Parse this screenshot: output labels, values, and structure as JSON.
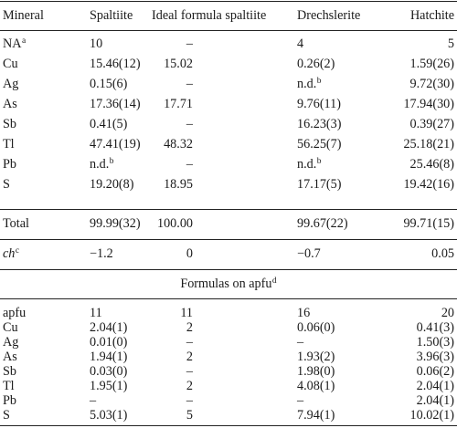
{
  "header": {
    "col0": "Mineral",
    "col1": "Spaltiite",
    "col2": "Ideal formula spaltiite",
    "col3": "Drechslerite",
    "col4": "Hatchite"
  },
  "composition_rows": [
    {
      "label": "NA",
      "sup": "a",
      "v1": "10",
      "v2": "–",
      "v3": "4",
      "v3sup": "",
      "v4": "5",
      "v1sup": ""
    },
    {
      "label": "Cu",
      "sup": "",
      "v1": "15.46(12)",
      "v2": "15.02",
      "v3": "0.26(2)",
      "v3sup": "",
      "v4": "1.59(26)",
      "v1sup": ""
    },
    {
      "label": "Ag",
      "sup": "",
      "v1": "0.15(6)",
      "v2": "–",
      "v3": "n.d.",
      "v3sup": "b",
      "v4": "9.72(30)",
      "v1sup": ""
    },
    {
      "label": "As",
      "sup": "",
      "v1": "17.36(14)",
      "v2": "17.71",
      "v3": "9.76(11)",
      "v3sup": "",
      "v4": "17.94(30)",
      "v1sup": ""
    },
    {
      "label": "Sb",
      "sup": "",
      "v1": "0.41(5)",
      "v2": "–",
      "v3": "16.23(3)",
      "v3sup": "",
      "v4": "0.39(27)",
      "v1sup": ""
    },
    {
      "label": "Tl",
      "sup": "",
      "v1": "47.41(19)",
      "v2": "48.32",
      "v3": "56.25(7)",
      "v3sup": "",
      "v4": "25.18(21)",
      "v1sup": ""
    },
    {
      "label": "Pb",
      "sup": "",
      "v1": "n.d.",
      "v2": "–",
      "v3": "n.d.",
      "v3sup": "b",
      "v4": "25.46(8)",
      "v1sup": "b"
    },
    {
      "label": "S",
      "sup": "",
      "v1": "19.20(8)",
      "v2": "18.95",
      "v3": "17.17(5)",
      "v3sup": "",
      "v4": "19.42(16)",
      "v1sup": ""
    }
  ],
  "total_row": {
    "label": "Total",
    "v1": "99.99(32)",
    "v2": "100.00",
    "v3": "99.67(22)",
    "v4": "99.71(15)"
  },
  "ch_row": {
    "label": "ch",
    "sup": "c",
    "v1": "−1.2",
    "v2": "0",
    "v3": "−0.7",
    "v4": "0.05"
  },
  "formulas_title": {
    "text": "Formulas on apfu",
    "sup": "d"
  },
  "apfu_rows": [
    {
      "label": "apfu",
      "v1": "11",
      "v2": "11",
      "v3": "16",
      "v4": "20"
    },
    {
      "label": "Cu",
      "v1": "2.04(1)",
      "v2": "2",
      "v3": "0.06(0)",
      "v4": "0.41(3)"
    },
    {
      "label": "Ag",
      "v1": "0.01(0)",
      "v2": "–",
      "v3": "–",
      "v4": "1.50(3)"
    },
    {
      "label": "As",
      "v1": "1.94(1)",
      "v2": "2",
      "v3": "1.93(2)",
      "v4": "3.96(3)"
    },
    {
      "label": "Sb",
      "v1": "0.03(0)",
      "v2": "–",
      "v3": "1.98(0)",
      "v4": "0.06(2)"
    },
    {
      "label": "Tl",
      "v1": "1.95(1)",
      "v2": "2",
      "v3": "4.08(1)",
      "v4": "2.04(1)"
    },
    {
      "label": "Pb",
      "v1": "–",
      "v2": "–",
      "v3": "–",
      "v4": "2.04(1)"
    },
    {
      "label": "S",
      "v1": "5.03(1)",
      "v2": "5",
      "v3": "7.94(1)",
      "v4": "10.02(1)"
    }
  ]
}
